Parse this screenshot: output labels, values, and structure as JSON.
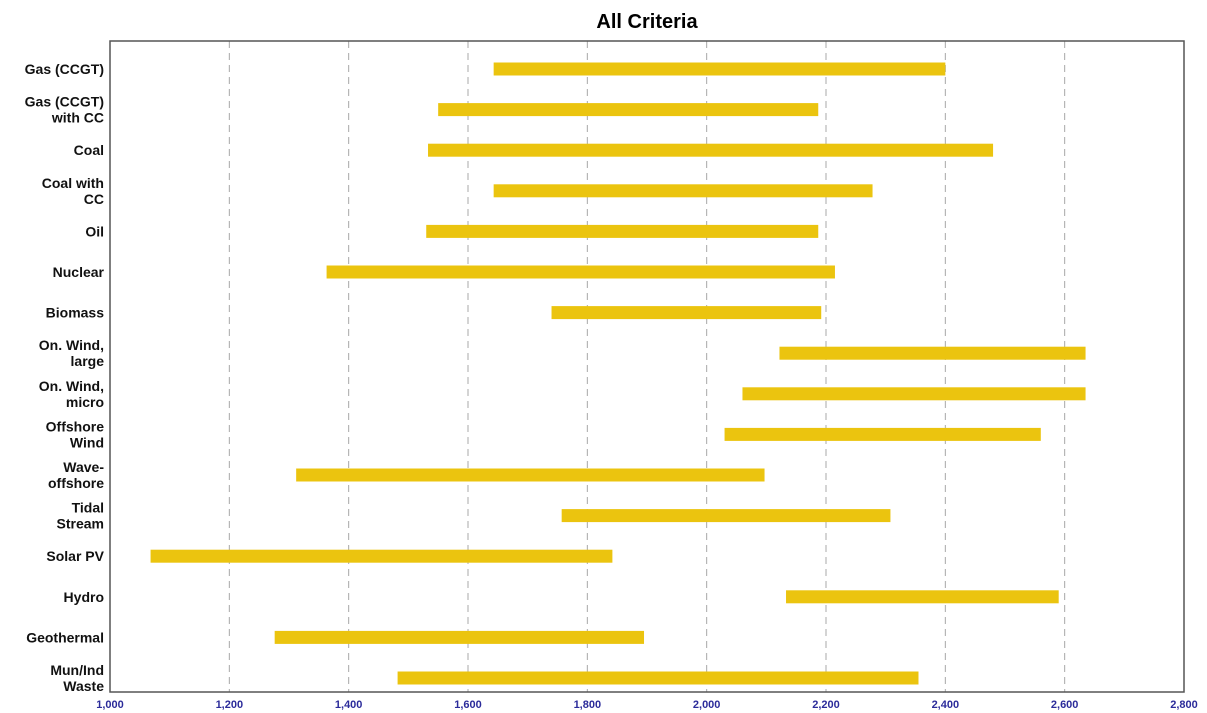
{
  "chart_data": {
    "type": "bar",
    "orientation": "horizontal-range",
    "title": "All Criteria",
    "xlabel": "",
    "ylabel": "",
    "xlim": [
      1000,
      2800
    ],
    "x_ticks": [
      1000,
      1200,
      1400,
      1600,
      1800,
      2000,
      2200,
      2400,
      2600,
      2800
    ],
    "x_tick_labels": [
      "1,000",
      "1,200",
      "1,400",
      "1,600",
      "1,800",
      "2,000",
      "2,200",
      "2,400",
      "2,600",
      "2,800"
    ],
    "grid": "vertical dashed",
    "bar_color": "#ebc40f",
    "categories": [
      [
        "Gas (CCGT)"
      ],
      [
        "Gas (CCGT)",
        "with CC"
      ],
      [
        "Coal"
      ],
      [
        "Coal with",
        "CC"
      ],
      [
        "Oil"
      ],
      [
        "Nuclear"
      ],
      [
        "Biomass"
      ],
      [
        "On. Wind,",
        "large"
      ],
      [
        "On. Wind,",
        "micro"
      ],
      [
        "Offshore",
        "Wind"
      ],
      [
        "Wave-",
        "offshore"
      ],
      [
        "Tidal",
        "Stream"
      ],
      [
        "Solar PV"
      ],
      [
        "Hydro"
      ],
      [
        "Geothermal"
      ],
      [
        "Mun/Ind",
        "Waste"
      ]
    ],
    "ranges": [
      [
        1643,
        2400
      ],
      [
        1550,
        2187
      ],
      [
        1533,
        2480
      ],
      [
        1643,
        2278
      ],
      [
        1530,
        2187
      ],
      [
        1363,
        2215
      ],
      [
        1740,
        2192
      ],
      [
        2122,
        2635
      ],
      [
        2060,
        2635
      ],
      [
        2030,
        2560
      ],
      [
        1312,
        2097
      ],
      [
        1757,
        2308
      ],
      [
        1068,
        1842
      ],
      [
        2133,
        2590
      ],
      [
        1276,
        1895
      ],
      [
        1482,
        2355
      ]
    ]
  }
}
